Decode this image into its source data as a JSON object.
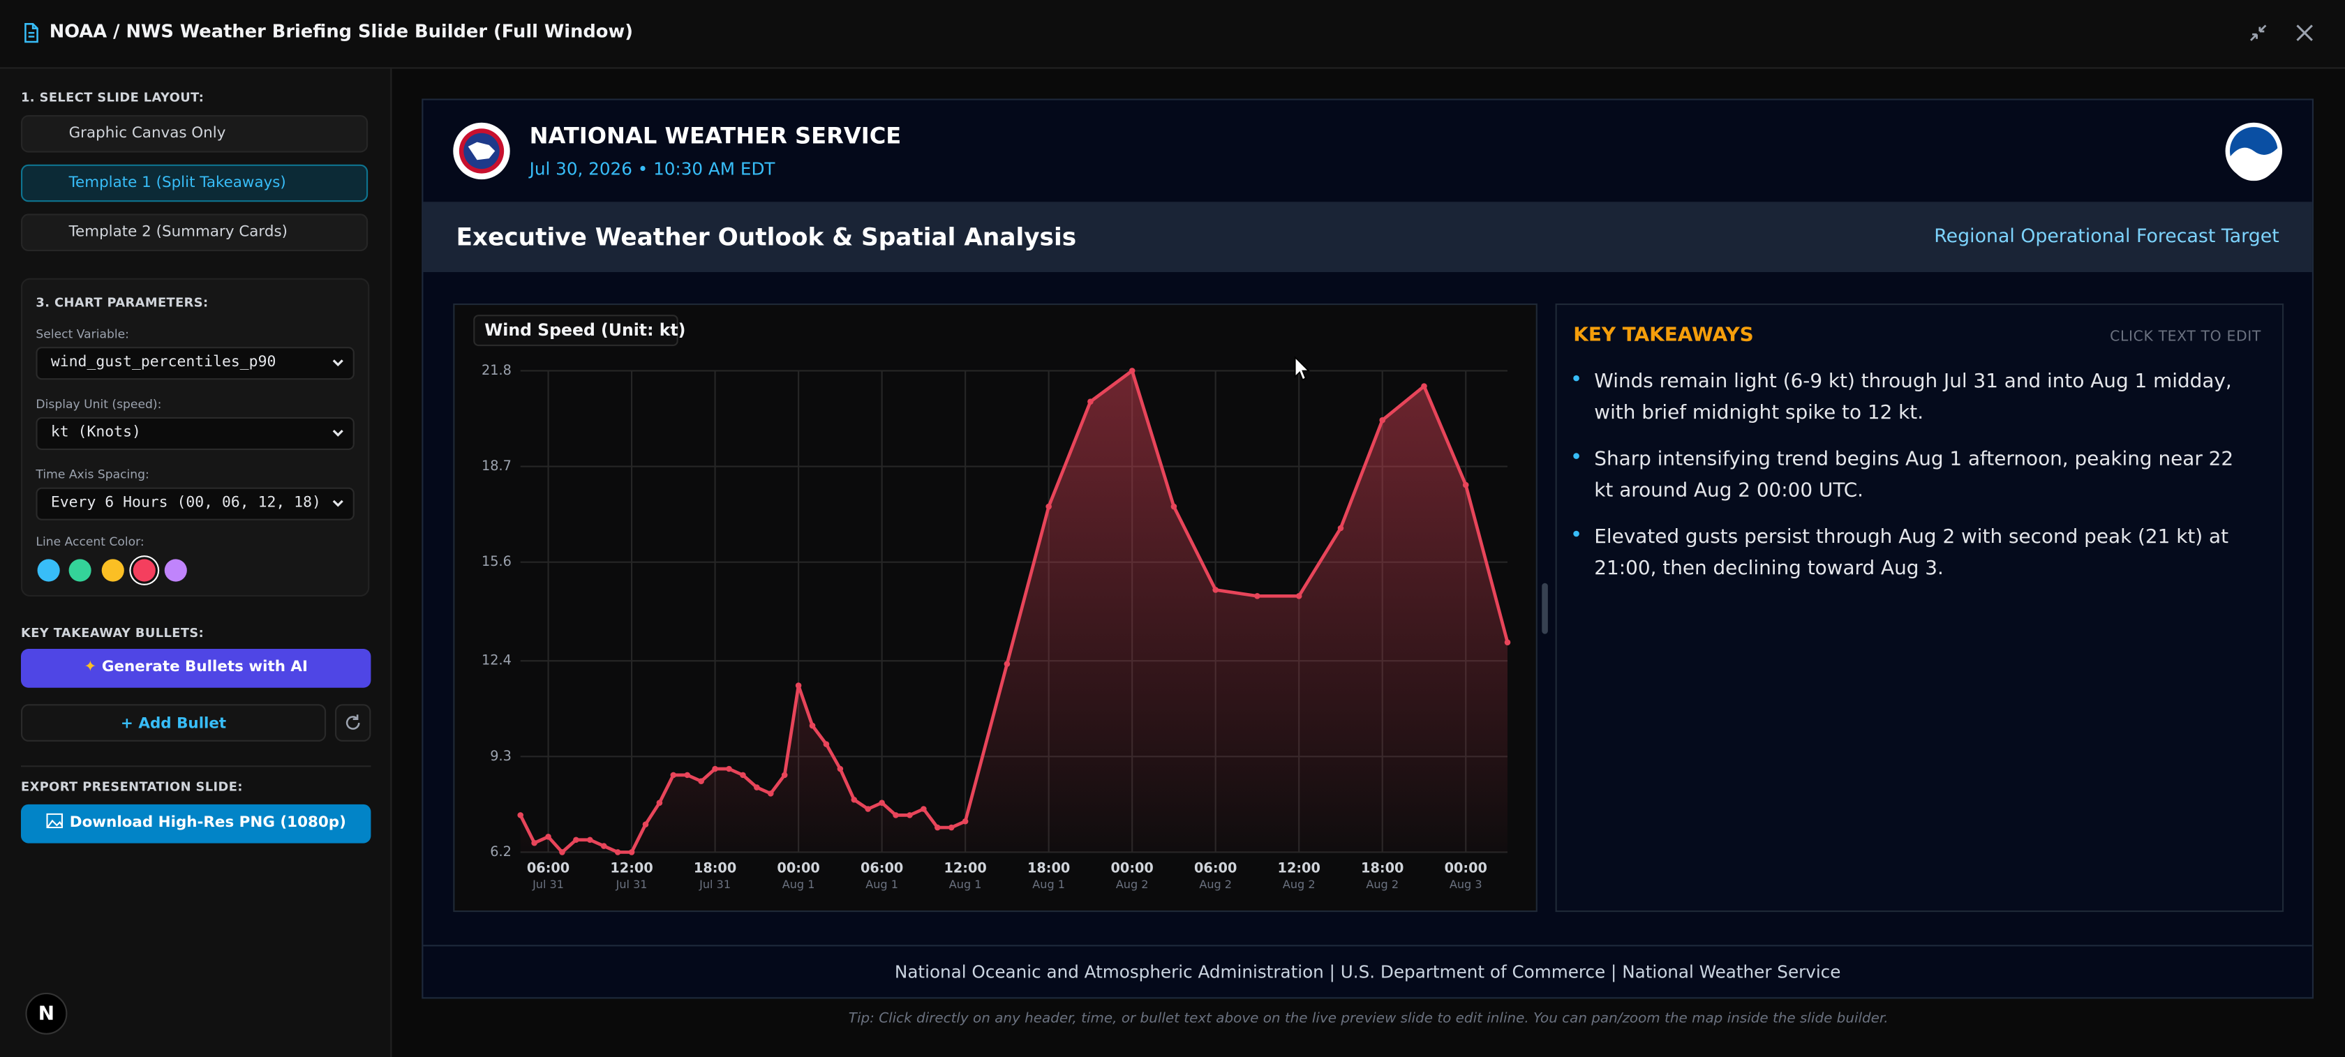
{
  "window": {
    "title": "NOAA / NWS Weather Briefing Slide Builder (Full Window)"
  },
  "sidebar": {
    "layout_heading": "1. SELECT SLIDE LAYOUT:",
    "layouts": [
      "Graphic Canvas Only",
      "Template 1 (Split Takeaways)",
      "Template 2 (Summary Cards)"
    ],
    "selected_layout": 1,
    "params_heading": "3. CHART PARAMETERS:",
    "fields": [
      {
        "label": "Select Variable:",
        "value": "wind_gust_percentiles_p90"
      },
      {
        "label": "Display Unit (speed):",
        "value": "kt (Knots)"
      },
      {
        "label": "Time Axis Spacing:",
        "value": "Every 6 Hours (00, 06, 12, 18)"
      }
    ],
    "accent_label": "Line Accent Color:",
    "accent_colors": [
      "#38bdf8",
      "#34d399",
      "#fbbf24",
      "#f43f5e",
      "#c084fc"
    ],
    "selected_accent": 3,
    "bullets_heading": "KEY TAKEAWAY BULLETS:",
    "generate_button": "Generate Bullets with AI",
    "add_button": "Add Bullet",
    "export_heading": "EXPORT PRESENTATION SLIDE:",
    "download_button": "Download High-Res PNG (1080p)"
  },
  "slide": {
    "agency": "NATIONAL WEATHER SERVICE",
    "timestamp": "Jul 30, 2026 • 10:30 AM EDT",
    "headline": "Executive Weather Outlook & Spatial Analysis",
    "target": "Regional Operational Forecast Target",
    "takeaways_title": "KEY TAKEAWAYS",
    "edit_hint": "CLICK TEXT TO EDIT",
    "takeaways": [
      "Winds remain light (6-9 kt) through Jul 31 and into Aug 1 midday, with brief midnight spike to 12 kt.",
      "Sharp intensifying trend begins Aug 1 afternoon, peaking near 22 kt around Aug 2 00:00 UTC.",
      "Elevated gusts persist through Aug 2 with second peak (21 kt) at 21:00, then declining toward Aug 3."
    ],
    "footer": "National Oceanic and Atmospheric Administration | U.S. Department of Commerce | National Weather Service"
  },
  "tip": "Tip: Click directly on any header, time, or bullet text above on the live preview slide to edit inline. You can pan/zoom the map inside the slide builder.",
  "chart_data": {
    "type": "line",
    "title": "Wind Speed (Unit: kt)",
    "color": "#e8455a",
    "x": [
      "Jul 31 04:00",
      "Jul 31 05:00",
      "Jul 31 06:00",
      "Jul 31 07:00",
      "Jul 31 08:00",
      "Jul 31 09:00",
      "Jul 31 10:00",
      "Jul 31 11:00",
      "Jul 31 12:00",
      "Jul 31 13:00",
      "Jul 31 14:00",
      "Jul 31 15:00",
      "Jul 31 16:00",
      "Jul 31 17:00",
      "Jul 31 18:00",
      "Jul 31 19:00",
      "Jul 31 20:00",
      "Jul 31 21:00",
      "Jul 31 22:00",
      "Jul 31 23:00",
      "Aug 1 00:00",
      "Aug 1 01:00",
      "Aug 1 02:00",
      "Aug 1 03:00",
      "Aug 1 04:00",
      "Aug 1 05:00",
      "Aug 1 06:00",
      "Aug 1 07:00",
      "Aug 1 08:00",
      "Aug 1 09:00",
      "Aug 1 10:00",
      "Aug 1 11:00",
      "Aug 1 12:00",
      "Aug 1 15:00",
      "Aug 1 18:00",
      "Aug 1 21:00",
      "Aug 2 00:00",
      "Aug 2 03:00",
      "Aug 2 06:00",
      "Aug 2 09:00",
      "Aug 2 12:00",
      "Aug 2 15:00",
      "Aug 2 18:00",
      "Aug 2 21:00",
      "Aug 3 00:00",
      "Aug 3 03:00"
    ],
    "values": [
      7.4,
      6.5,
      6.7,
      6.2,
      6.6,
      6.6,
      6.4,
      6.2,
      6.2,
      7.1,
      7.8,
      8.7,
      8.7,
      8.5,
      8.9,
      8.9,
      8.7,
      8.3,
      8.1,
      8.7,
      11.6,
      10.3,
      9.7,
      8.9,
      7.9,
      7.6,
      7.8,
      7.4,
      7.4,
      7.6,
      7.0,
      7.0,
      7.2,
      12.3,
      17.4,
      20.8,
      21.8,
      17.4,
      14.7,
      14.5,
      14.5,
      16.7,
      20.2,
      21.3,
      18.1,
      13.0
    ],
    "xlim": [
      "Jul 31 04:00",
      "Aug 3 03:00"
    ],
    "xticks": [
      {
        "label": "06:00",
        "sublabel": "Jul 31"
      },
      {
        "label": "12:00",
        "sublabel": "Jul 31"
      },
      {
        "label": "18:00",
        "sublabel": "Jul 31"
      },
      {
        "label": "00:00",
        "sublabel": "Aug 1"
      },
      {
        "label": "06:00",
        "sublabel": "Aug 1"
      },
      {
        "label": "12:00",
        "sublabel": "Aug 1"
      },
      {
        "label": "18:00",
        "sublabel": "Aug 1"
      },
      {
        "label": "00:00",
        "sublabel": "Aug 2"
      },
      {
        "label": "06:00",
        "sublabel": "Aug 2"
      },
      {
        "label": "12:00",
        "sublabel": "Aug 2"
      },
      {
        "label": "18:00",
        "sublabel": "Aug 2"
      },
      {
        "label": "00:00",
        "sublabel": "Aug 3"
      }
    ],
    "ylim": [
      6.2,
      21.8
    ],
    "yticks": [
      6.2,
      9.3,
      12.4,
      15.6,
      18.7,
      21.8
    ],
    "grid": true
  }
}
